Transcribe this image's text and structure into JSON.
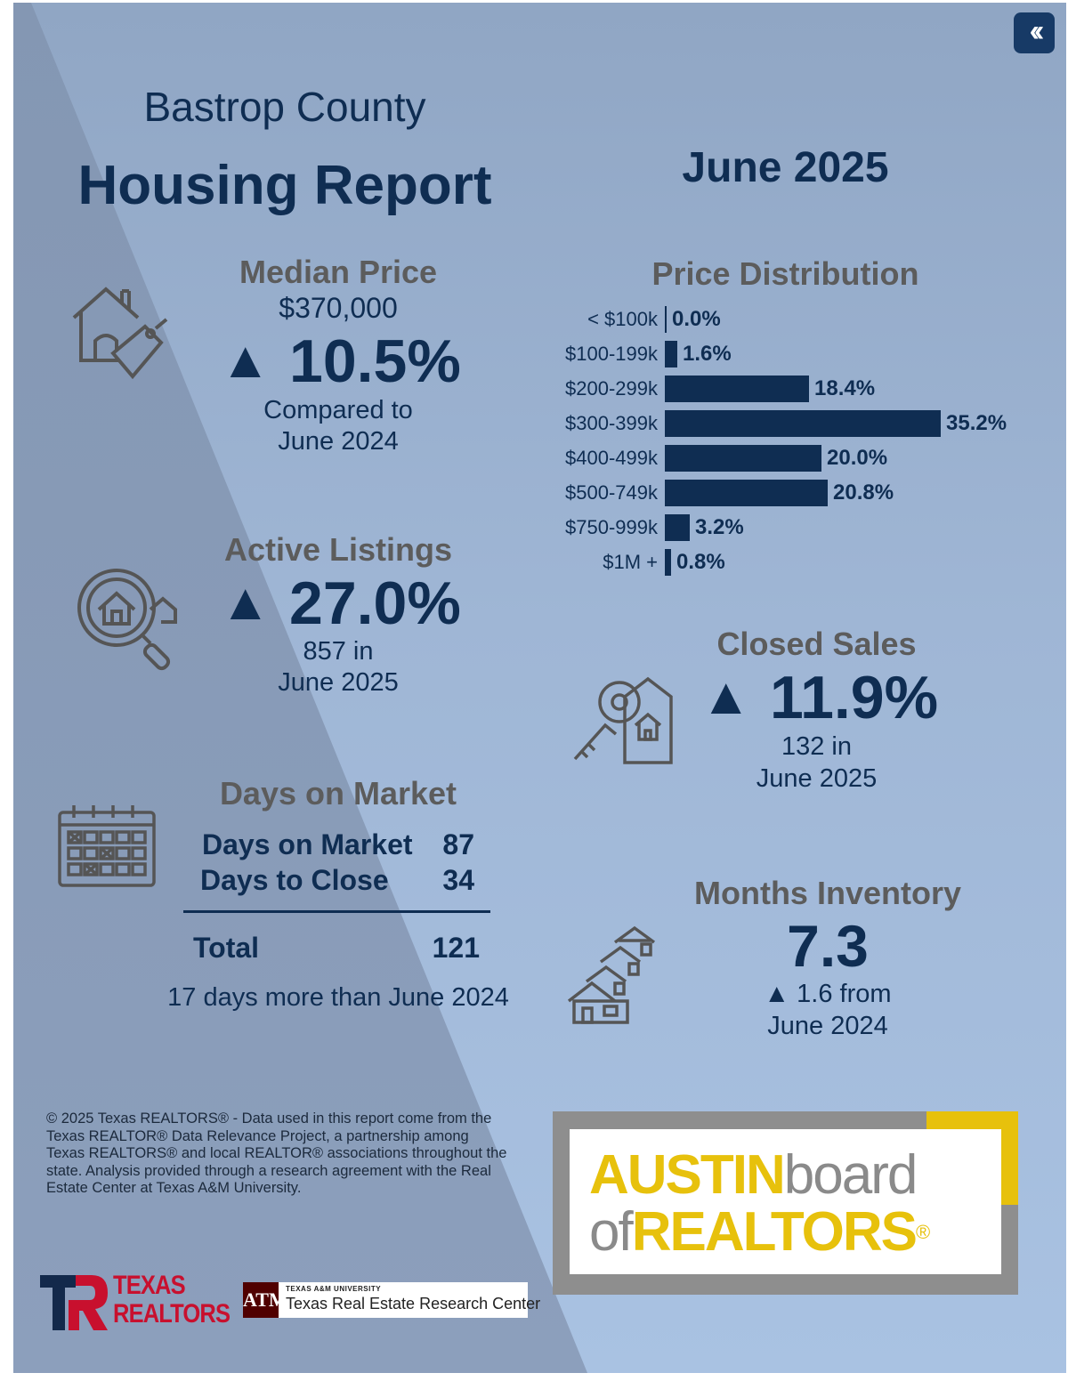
{
  "header": {
    "county": "Bastrop County",
    "title": "Housing Report",
    "period": "June 2025",
    "collapse_icon": "double-chevron-left-icon"
  },
  "median_price": {
    "title": "Median Price",
    "value": "$370,000",
    "arrow": "▲",
    "change": "10.5%",
    "compare_line1": "Compared to",
    "compare_line2": "June 2024",
    "icon": "house-price-tag-icon"
  },
  "active_listings": {
    "title": "Active Listings",
    "arrow": "▲",
    "change": "27.0%",
    "line1": "857 in",
    "line2": "June 2025",
    "icon": "magnifier-house-icon"
  },
  "days_on_market": {
    "title": "Days on Market",
    "dom_label": "Days on Market",
    "dom_value": "87",
    "dtc_label": "Days to Close",
    "dtc_value": "34",
    "total_label": "Total",
    "total_value": "121",
    "note": "17 days more than June 2024",
    "icon": "calendar-icon"
  },
  "price_distribution": {
    "title": "Price Distribution",
    "chart_data": {
      "type": "bar",
      "orientation": "horizontal",
      "categories": [
        "< $100k",
        "$100-199k",
        "$200-299k",
        "$300-399k",
        "$400-499k",
        "$500-749k",
        "$750-999k",
        "$1M +"
      ],
      "values": [
        0.0,
        1.6,
        18.4,
        35.2,
        20.0,
        20.8,
        3.2,
        0.8
      ],
      "value_labels": [
        "0.0%",
        "1.6%",
        "18.4%",
        "35.2%",
        "20.0%",
        "20.8%",
        "3.2%",
        "0.8%"
      ],
      "title": "Price Distribution",
      "xlim": [
        0,
        35.2
      ],
      "color": "#0f2d52",
      "grid": false
    }
  },
  "closed_sales": {
    "title": "Closed Sales",
    "arrow": "▲",
    "change": "11.9%",
    "line1": "132 in",
    "line2": "June 2025",
    "icon": "key-house-tag-icon"
  },
  "months_inventory": {
    "title": "Months Inventory",
    "value": "7.3",
    "line1": "▲ 1.6 from",
    "line2": "June 2024",
    "icon": "stacked-houses-icon"
  },
  "footer": {
    "disclaimer_lines": [
      "© 2025 Texas REALTORS® - Data used in this report come from the",
      "Texas REALTOR® Data Relevance Project, a partnership among",
      "Texas REALTORS® and local REALTOR® associations throughout the",
      "state. Analysis provided through a research agreement with the Real",
      "Estate Center at Texas A&M University."
    ],
    "texas_realtors": {
      "line1": "TEXAS",
      "line2": "REALTORS"
    },
    "tamu": {
      "small": "TEXAS A&M UNIVERSITY",
      "name": "Texas Real Estate Research Center"
    },
    "abor": {
      "austin": "AUSTIN",
      "board": "board",
      "of": "of",
      "realtors": "REALTORS",
      "mark": "®"
    }
  },
  "colors": {
    "navy": "#0f2d52",
    "gold": "#e7c10c",
    "gray_frame": "#8e8e8e",
    "maroon": "#500000",
    "red": "#c8102e"
  }
}
